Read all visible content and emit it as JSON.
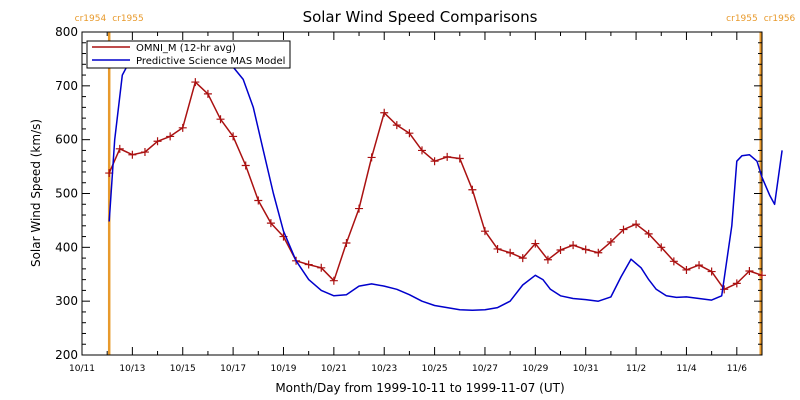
{
  "chart_data": {
    "type": "line",
    "title": "Solar Wind Speed Comparisons",
    "xlabel": "Month/Day from 1999-10-11 to 1999-11-07 (UT)",
    "ylabel": "Solar Wind Speed (km/s)",
    "xlim": [
      0,
      27
    ],
    "ylim": [
      200,
      800
    ],
    "yticks": [
      200,
      300,
      400,
      500,
      600,
      700,
      800
    ],
    "xticks": [
      {
        "x": 0,
        "label": "10/11"
      },
      {
        "x": 2,
        "label": "10/13"
      },
      {
        "x": 4,
        "label": "10/15"
      },
      {
        "x": 6,
        "label": "10/17"
      },
      {
        "x": 8,
        "label": "10/19"
      },
      {
        "x": 10,
        "label": "10/21"
      },
      {
        "x": 12,
        "label": "10/23"
      },
      {
        "x": 14,
        "label": "10/25"
      },
      {
        "x": 16,
        "label": "10/27"
      },
      {
        "x": 18,
        "label": "10/29"
      },
      {
        "x": 20,
        "label": "10/31"
      },
      {
        "x": 22,
        "label": "11/2"
      },
      {
        "x": 24,
        "label": "11/4"
      },
      {
        "x": 26,
        "label": "11/6"
      }
    ],
    "carrington_markers": [
      {
        "x": 1.08,
        "label_left": "cr1954",
        "label_right": "cr1955"
      },
      {
        "x": 26.95,
        "label_left": "cr1955",
        "label_right": "cr1956"
      }
    ],
    "marker_color": "#e89a2c",
    "legend_position": "top-left",
    "series": [
      {
        "name": "OMNI_M (12-hr avg)",
        "color": "#aa1111",
        "marker": "plus",
        "x": [
          1.08,
          1.5,
          2.0,
          2.5,
          3.0,
          3.5,
          4.0,
          4.5,
          5.0,
          5.5,
          6.0,
          6.5,
          7.0,
          7.5,
          8.0,
          8.5,
          9.0,
          9.5,
          10.0,
          10.5,
          11.0,
          11.5,
          12.0,
          12.5,
          13.0,
          13.5,
          14.0,
          14.5,
          15.0,
          15.5,
          16.0,
          16.5,
          17.0,
          17.5,
          18.0,
          18.5,
          19.0,
          19.5,
          20.0,
          20.5,
          21.0,
          21.5,
          22.0,
          22.5,
          23.0,
          23.5,
          24.0,
          24.5,
          25.0,
          25.5,
          26.0,
          26.5,
          27.0
        ],
        "values": [
          538,
          583,
          572,
          577,
          597,
          606,
          622,
          707,
          685,
          638,
          606,
          552,
          487,
          445,
          420,
          375,
          368,
          362,
          338,
          408,
          472,
          567,
          650,
          627,
          612,
          580,
          560,
          568,
          565,
          507,
          430,
          397,
          390,
          380,
          407,
          377,
          395,
          404,
          396,
          390,
          410,
          433,
          443,
          425,
          400,
          374,
          358,
          367,
          355,
          322,
          333,
          356,
          348
        ]
      },
      {
        "name": "Predictive Science MAS Model",
        "color": "#0000cc",
        "marker": "none",
        "x": [
          1.08,
          1.3,
          1.6,
          2.0,
          2.4,
          3.0,
          3.5,
          4.0,
          4.5,
          5.0,
          5.5,
          6.0,
          6.4,
          6.8,
          7.2,
          7.6,
          8.0,
          8.5,
          9.0,
          9.5,
          10.0,
          10.5,
          11.0,
          11.5,
          12.0,
          12.5,
          13.0,
          13.5,
          14.0,
          14.5,
          15.0,
          15.5,
          16.0,
          16.5,
          17.0,
          17.5,
          18.0,
          18.3,
          18.6,
          19.0,
          19.5,
          20.0,
          20.5,
          21.0,
          21.4,
          21.8,
          22.2,
          22.5,
          22.8,
          23.2,
          23.6,
          24.0,
          24.5,
          25.0,
          25.4,
          25.8,
          26.0,
          26.2,
          26.5,
          26.8,
          27.0,
          27.3,
          27.5,
          27.8
        ],
        "values": [
          448,
          600,
          720,
          755,
          760,
          758,
          757,
          756,
          755,
          752,
          748,
          735,
          712,
          660,
          580,
          500,
          430,
          375,
          340,
          320,
          310,
          312,
          328,
          332,
          328,
          322,
          312,
          300,
          292,
          288,
          284,
          283,
          284,
          288,
          300,
          330,
          348,
          340,
          322,
          310,
          305,
          303,
          300,
          308,
          345,
          378,
          362,
          340,
          322,
          310,
          307,
          308,
          305,
          302,
          310,
          440,
          560,
          570,
          572,
          560,
          530,
          497,
          480,
          580
        ]
      }
    ]
  }
}
